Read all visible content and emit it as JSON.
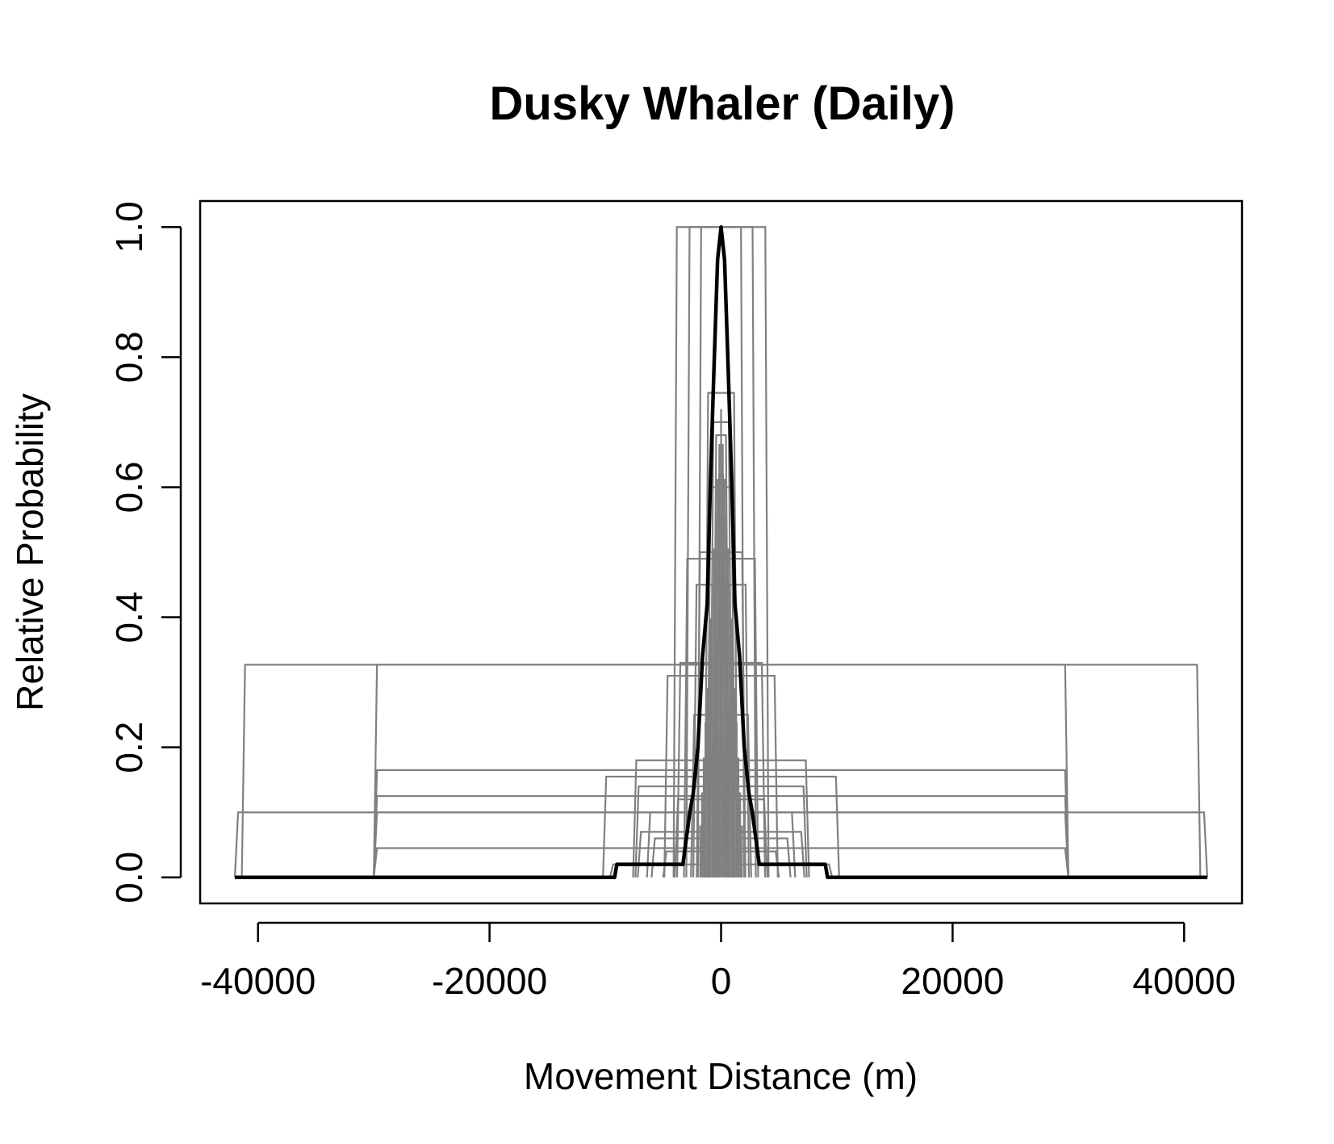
{
  "chart_data": {
    "type": "line",
    "title": "Dusky Whaler (Daily)",
    "xlabel": "Movement Distance (m)",
    "ylabel": "Relative Probability",
    "xlim": [
      -45000,
      45000
    ],
    "ylim": [
      -0.04,
      1.04
    ],
    "x_ticks": [
      -40000,
      -20000,
      0,
      20000,
      40000
    ],
    "x_tick_labels": [
      "-40000",
      "-20000",
      "0",
      "20000",
      "40000"
    ],
    "y_ticks": [
      0.0,
      0.2,
      0.4,
      0.6,
      0.8,
      1.0
    ],
    "y_tick_labels": [
      "0.0",
      "0.2",
      "0.4",
      "0.6",
      "0.8",
      "1.0"
    ],
    "grid": false,
    "colors": {
      "individual": "#808080",
      "mean": "#000000"
    },
    "individual_kernels": [
      {
        "half_width": 42000,
        "height": 0.1
      },
      {
        "half_width": 41400,
        "height": 0.327
      },
      {
        "half_width": 30000,
        "height": 0.327
      },
      {
        "half_width": 30000,
        "height": 0.165
      },
      {
        "half_width": 30000,
        "height": 0.125
      },
      {
        "half_width": 30000,
        "height": 0.1
      },
      {
        "half_width": 30000,
        "height": 0.045
      },
      {
        "half_width": 10200,
        "height": 0.155
      },
      {
        "half_width": 9600,
        "height": 0.02
      },
      {
        "half_width": 7600,
        "height": 0.18
      },
      {
        "half_width": 7400,
        "height": 0.14
      },
      {
        "half_width": 7200,
        "height": 0.07
      },
      {
        "half_width": 6400,
        "height": 0.1
      },
      {
        "half_width": 6000,
        "height": 0.06
      },
      {
        "half_width": 5000,
        "height": 0.04
      },
      {
        "half_width": 4900,
        "height": 0.31
      },
      {
        "half_width": 4000,
        "height": 0.12
      },
      {
        "half_width": 3800,
        "height": 0.33
      },
      {
        "half_width": 3200,
        "height": 0.49
      },
      {
        "half_width": 2600,
        "height": 0.25
      },
      {
        "half_width": 2400,
        "height": 0.45
      },
      {
        "half_width": 2100,
        "height": 0.5
      },
      {
        "half_width": 1700,
        "height": 0.15
      },
      {
        "half_width": 1400,
        "height": 0.745
      },
      {
        "half_width": 1200,
        "height": 0.6
      },
      {
        "half_width": 950,
        "height": 0.7
      },
      {
        "half_width": 700,
        "height": 0.68
      },
      {
        "half_width": 450,
        "height": 0.62
      },
      {
        "half_width": 250,
        "height": 0.55
      }
    ],
    "peak_kernels": [
      {
        "half_width": 4100,
        "height": 1.0
      },
      {
        "half_width": 3000,
        "height": 1.0
      },
      {
        "half_width": 2000,
        "height": 1.0
      }
    ],
    "mean_curve": {
      "x": [
        -42000,
        -9200,
        -9000,
        -3300,
        -3000,
        -2700,
        -2400,
        -2000,
        -1600,
        -1200,
        -900,
        -600,
        -300,
        0,
        300,
        600,
        900,
        1200,
        1600,
        2000,
        2400,
        2700,
        3000,
        3300,
        9000,
        9200,
        42000
      ],
      "y": [
        0.0,
        0.0,
        0.02,
        0.02,
        0.06,
        0.1,
        0.13,
        0.2,
        0.34,
        0.42,
        0.62,
        0.79,
        0.95,
        1.0,
        0.95,
        0.79,
        0.62,
        0.42,
        0.34,
        0.2,
        0.13,
        0.1,
        0.06,
        0.02,
        0.02,
        0.0,
        0.0
      ]
    }
  }
}
